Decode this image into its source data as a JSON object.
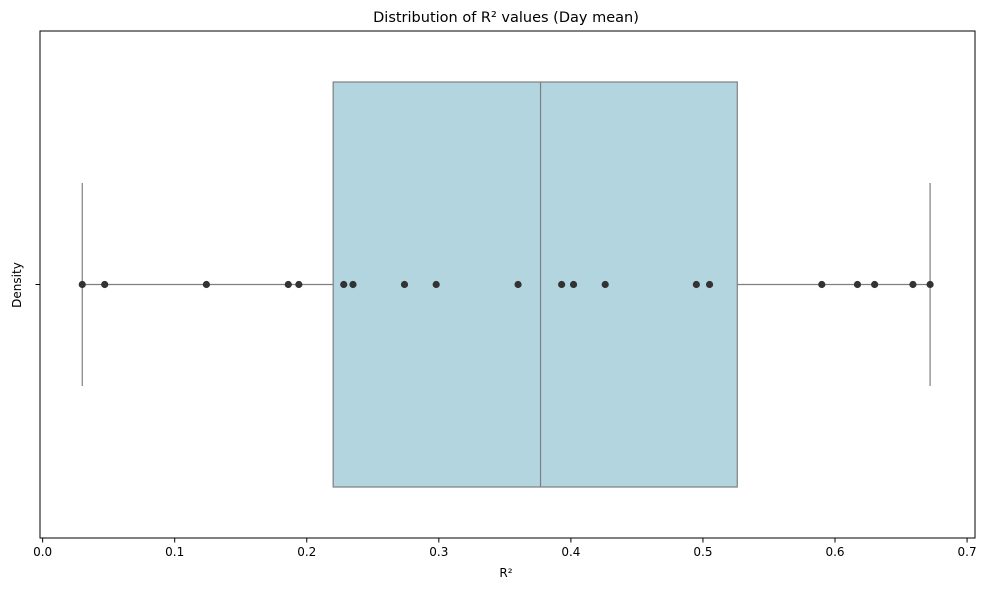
{
  "chart_data": {
    "type": "box",
    "title": "Distribution of R² values (Day mean)",
    "xlabel": "R²",
    "ylabel": "Density",
    "xlim": [
      -0.002,
      0.706
    ],
    "xticks": [
      "0.0",
      "0.1",
      "0.2",
      "0.3",
      "0.4",
      "0.5",
      "0.6",
      "0.7"
    ],
    "xtick_values": [
      0.0,
      0.1,
      0.2,
      0.3,
      0.4,
      0.5,
      0.6,
      0.7
    ],
    "grid": false,
    "box": {
      "whisker_low": 0.03,
      "q1": 0.22,
      "median": 0.377,
      "q3": 0.526,
      "whisker_high": 0.672
    },
    "points": [
      0.03,
      0.047,
      0.124,
      0.186,
      0.194,
      0.228,
      0.235,
      0.274,
      0.298,
      0.36,
      0.393,
      0.402,
      0.426,
      0.495,
      0.505,
      0.59,
      0.617,
      0.63,
      0.659,
      0.672
    ],
    "colors": {
      "box_fill": "#b3d5e0",
      "box_edge": "#7f7f7f",
      "points": "#333333",
      "axis": "#000000"
    }
  }
}
